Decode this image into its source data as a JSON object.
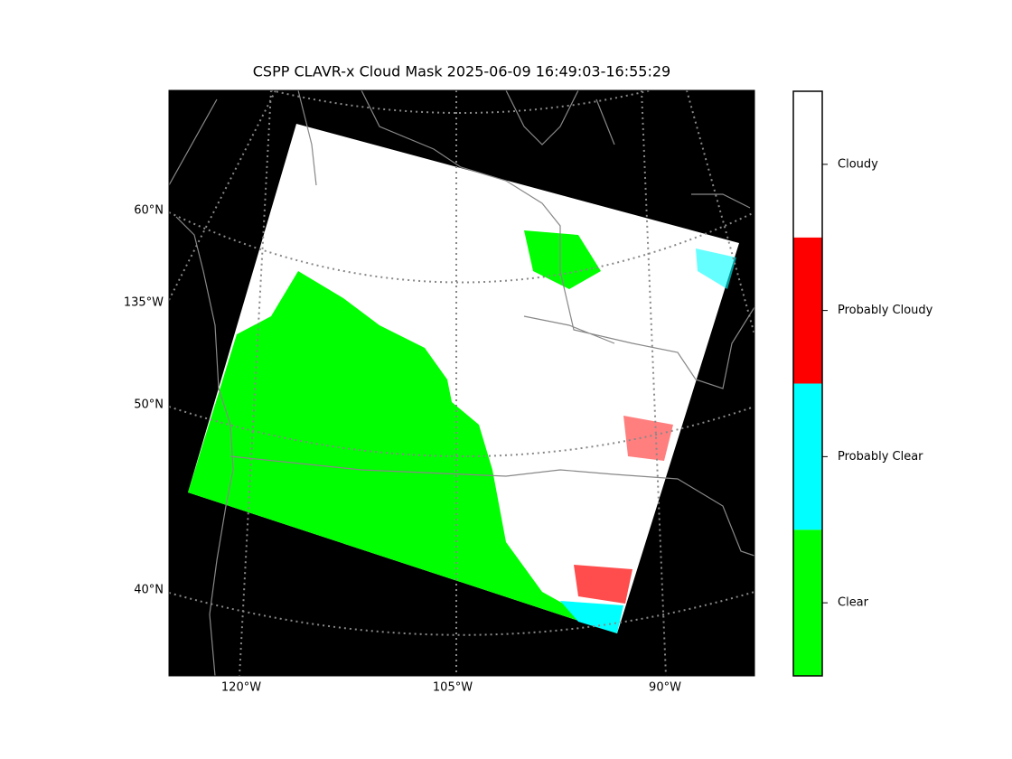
{
  "title": "CSPP CLAVR-x Cloud Mask 2025-06-09 16:49:03-16:55:29",
  "map": {
    "lat_labels": [
      "60°N",
      "50°N",
      "40°N"
    ],
    "side_lon_label": "135°W",
    "lon_labels": [
      "120°W",
      "105°W",
      "90°W"
    ]
  },
  "colorbar": {
    "classes": [
      {
        "label": "Clear",
        "color": "#00ff00"
      },
      {
        "label": "Probably Clear",
        "color": "#00ffff"
      },
      {
        "label": "Probably Cloudy",
        "color": "#ff0000"
      },
      {
        "label": "Cloudy",
        "color": "#ffffff"
      }
    ]
  }
}
